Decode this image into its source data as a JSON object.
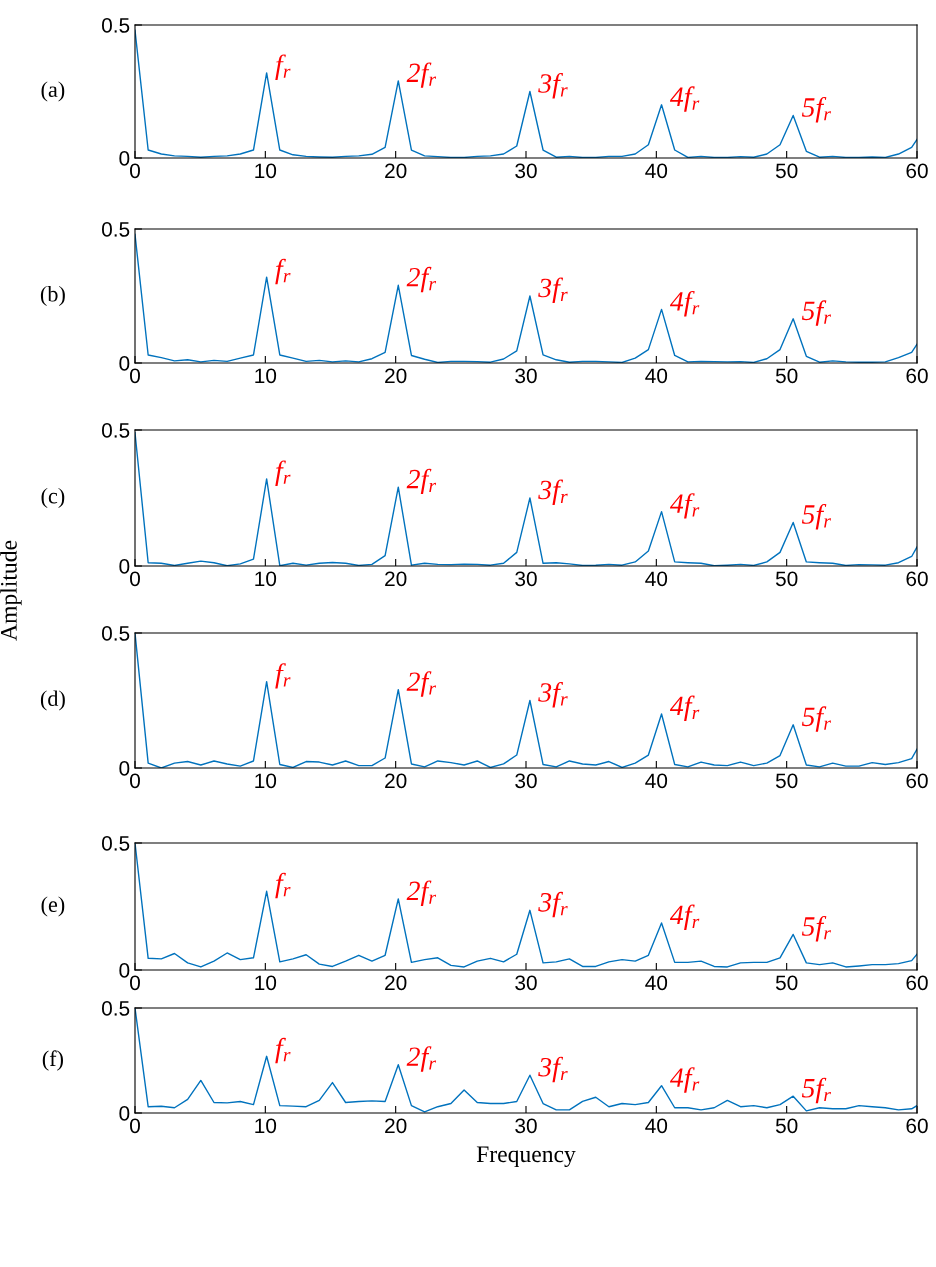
{
  "chart_data": [
    {
      "type": "line",
      "x": [
        0,
        1.01,
        2.02,
        3.03,
        4.04,
        5.05,
        6.06,
        7.07,
        8.08,
        9.09,
        10.1,
        11.11,
        12.12,
        13.13,
        14.14,
        15.15,
        16.16,
        17.17,
        18.18,
        19.19,
        20.2,
        21.21,
        22.22,
        23.23,
        24.24,
        25.25,
        26.26,
        27.27,
        28.28,
        29.29,
        30.3,
        31.31,
        32.32,
        33.33,
        34.34,
        35.35,
        36.36,
        37.37,
        38.38,
        39.39,
        40.4,
        41.41,
        42.42,
        43.43,
        44.44,
        45.45,
        46.46,
        47.47,
        48.48,
        49.49,
        50.5,
        51.51,
        52.52,
        53.53,
        54.54,
        55.55,
        56.56,
        57.57,
        58.58,
        59.59,
        60
      ],
      "series": [
        {
          "color": "#0072bd",
          "values": [
            0.48,
            0.03,
            0.015,
            0.008,
            0.006,
            0.003,
            0.006,
            0.008,
            0.015,
            0.03,
            0.32,
            0.03,
            0.012,
            0.006,
            0.004,
            0.003,
            0.006,
            0.008,
            0.014,
            0.04,
            0.29,
            0.03,
            0.008,
            0.005,
            0.002,
            0.002,
            0.006,
            0.008,
            0.015,
            0.045,
            0.25,
            0.03,
            0.003,
            0.006,
            0.002,
            0.002,
            0.006,
            0.006,
            0.015,
            0.05,
            0.2,
            0.03,
            0.002,
            0.006,
            0.002,
            0.002,
            0.005,
            0.003,
            0.015,
            0.05,
            0.16,
            0.025,
            0.003,
            0.006,
            0.002,
            0.002,
            0.004,
            0.002,
            0.015,
            0.04,
            0.07
          ]
        }
      ],
      "xlim": [
        0,
        60
      ],
      "ylim": [
        0,
        0.5
      ],
      "xticks": [
        0,
        10,
        20,
        30,
        40,
        50,
        60
      ],
      "yticks": [
        0,
        0.5
      ],
      "grid": false,
      "line_style": "solid",
      "marker": "none",
      "annotations": [
        "(a)",
        {
          "text": "f$_{r}$",
          "x": 10.1,
          "y": 0.32
        },
        {
          "text": "2f$_{r}$",
          "x": 20.2,
          "y": 0.29
        },
        {
          "text": "3f$_{r}$",
          "x": 30.3,
          "y": 0.25
        },
        {
          "text": "4f$_{r}$",
          "x": 40.4,
          "y": 0.2
        },
        {
          "text": "5f$_{r}$",
          "x": 50.5,
          "y": 0.16
        }
      ]
    },
    {
      "type": "line",
      "x": [
        0,
        1.01,
        2.02,
        3.03,
        4.04,
        5.05,
        6.06,
        7.07,
        8.08,
        9.09,
        10.1,
        11.11,
        12.12,
        13.13,
        14.14,
        15.15,
        16.16,
        17.17,
        18.18,
        19.19,
        20.2,
        21.21,
        22.22,
        23.23,
        24.24,
        25.25,
        26.26,
        27.27,
        28.28,
        29.29,
        30.3,
        31.31,
        32.32,
        33.33,
        34.34,
        35.35,
        36.36,
        37.37,
        38.38,
        39.39,
        40.4,
        41.41,
        42.42,
        43.43,
        44.44,
        45.45,
        46.46,
        47.47,
        48.48,
        49.49,
        50.5,
        51.51,
        52.52,
        53.53,
        54.54,
        55.55,
        56.56,
        57.57,
        58.58,
        59.59,
        60
      ],
      "series": [
        {
          "color": "#0072bd",
          "values": [
            0.48,
            0.03,
            0.02,
            0.008,
            0.012,
            0.004,
            0.01,
            0.006,
            0.018,
            0.03,
            0.32,
            0.03,
            0.018,
            0.006,
            0.01,
            0.004,
            0.008,
            0.004,
            0.016,
            0.04,
            0.29,
            0.028,
            0.014,
            0.002,
            0.006,
            0.006,
            0.005,
            0.003,
            0.015,
            0.045,
            0.25,
            0.03,
            0.012,
            0.003,
            0.006,
            0.006,
            0.004,
            0.002,
            0.018,
            0.05,
            0.2,
            0.028,
            0.004,
            0.006,
            0.005,
            0.004,
            0.005,
            0.002,
            0.016,
            0.05,
            0.165,
            0.025,
            0.003,
            0.008,
            0.004,
            0.003,
            0.003,
            0.004,
            0.02,
            0.04,
            0.07
          ]
        }
      ],
      "xlim": [
        0,
        60
      ],
      "ylim": [
        0,
        0.5
      ],
      "xticks": [
        0,
        10,
        20,
        30,
        40,
        50,
        60
      ],
      "yticks": [
        0,
        0.5
      ],
      "grid": false,
      "line_style": "solid",
      "marker": "none",
      "annotations": [
        "(b)",
        {
          "text": "f$_{r}$",
          "x": 10.1,
          "y": 0.32
        },
        {
          "text": "2f$_{r}$",
          "x": 20.2,
          "y": 0.29
        },
        {
          "text": "3f$_{r}$",
          "x": 30.3,
          "y": 0.25
        },
        {
          "text": "4f$_{r}$",
          "x": 40.4,
          "y": 0.2
        },
        {
          "text": "5f$_{r}$",
          "x": 50.5,
          "y": 0.165
        }
      ]
    },
    {
      "type": "line",
      "x": [
        0,
        1.01,
        2.02,
        3.03,
        4.04,
        5.05,
        6.06,
        7.07,
        8.08,
        9.09,
        10.1,
        11.11,
        12.12,
        13.13,
        14.14,
        15.15,
        16.16,
        17.17,
        18.18,
        19.19,
        20.2,
        21.21,
        22.22,
        23.23,
        24.24,
        25.25,
        26.26,
        27.27,
        28.28,
        29.29,
        30.3,
        31.31,
        32.32,
        33.33,
        34.34,
        35.35,
        36.36,
        37.37,
        38.38,
        39.39,
        40.4,
        41.41,
        42.42,
        43.43,
        44.44,
        45.45,
        46.46,
        47.47,
        48.48,
        49.49,
        50.5,
        51.51,
        52.52,
        53.53,
        54.54,
        55.55,
        56.56,
        57.57,
        58.58,
        59.59,
        60
      ],
      "series": [
        {
          "color": "#0072bd",
          "values": [
            0.49,
            0.012,
            0.01,
            0.002,
            0.01,
            0.018,
            0.012,
            0.001,
            0.008,
            0.025,
            0.32,
            0.001,
            0.01,
            0.003,
            0.01,
            0.013,
            0.01,
            0.002,
            0.006,
            0.038,
            0.29,
            0.003,
            0.01,
            0.006,
            0.005,
            0.007,
            0.006,
            0.003,
            0.01,
            0.05,
            0.25,
            0.01,
            0.012,
            0.008,
            0.002,
            0.003,
            0.006,
            0.003,
            0.015,
            0.055,
            0.2,
            0.015,
            0.012,
            0.01,
            0.001,
            0.003,
            0.006,
            0.002,
            0.015,
            0.05,
            0.16,
            0.015,
            0.012,
            0.01,
            0.002,
            0.005,
            0.004,
            0.003,
            0.012,
            0.035,
            0.07
          ]
        }
      ],
      "xlim": [
        0,
        60
      ],
      "ylim": [
        0,
        0.5
      ],
      "xticks": [
        0,
        10,
        20,
        30,
        40,
        50,
        60
      ],
      "yticks": [
        0,
        0.5
      ],
      "grid": false,
      "line_style": "solid",
      "marker": "none",
      "ylabel": "Amplitude",
      "annotations": [
        "(c)",
        {
          "text": "f$_{r}$",
          "x": 10.1,
          "y": 0.32
        },
        {
          "text": "2f$_{r}$",
          "x": 20.2,
          "y": 0.29
        },
        {
          "text": "3f$_{r}$",
          "x": 30.3,
          "y": 0.25
        },
        {
          "text": "4f$_{r}$",
          "x": 40.4,
          "y": 0.2
        },
        {
          "text": "5f$_{r}$",
          "x": 50.5,
          "y": 0.16
        }
      ]
    },
    {
      "type": "line",
      "x": [
        0,
        1.01,
        2.02,
        3.03,
        4.04,
        5.05,
        6.06,
        7.07,
        8.08,
        9.09,
        10.1,
        11.11,
        12.12,
        13.13,
        14.14,
        15.15,
        16.16,
        17.17,
        18.18,
        19.19,
        20.2,
        21.21,
        22.22,
        23.23,
        24.24,
        25.25,
        26.26,
        27.27,
        28.28,
        29.29,
        30.3,
        31.31,
        32.32,
        33.33,
        34.34,
        35.35,
        36.36,
        37.37,
        38.38,
        39.39,
        40.4,
        41.41,
        42.42,
        43.43,
        44.44,
        45.45,
        46.46,
        47.47,
        48.48,
        49.49,
        50.5,
        51.51,
        52.52,
        53.53,
        54.54,
        55.55,
        56.56,
        57.57,
        58.58,
        59.59,
        60
      ],
      "series": [
        {
          "color": "#0072bd",
          "values": [
            0.5,
            0.018,
            0.0,
            0.018,
            0.024,
            0.011,
            0.026,
            0.015,
            0.007,
            0.026,
            0.32,
            0.013,
            0.002,
            0.024,
            0.022,
            0.011,
            0.026,
            0.009,
            0.009,
            0.037,
            0.29,
            0.015,
            0.004,
            0.026,
            0.02,
            0.011,
            0.026,
            0.002,
            0.015,
            0.048,
            0.25,
            0.013,
            0.004,
            0.026,
            0.015,
            0.011,
            0.024,
            0.002,
            0.018,
            0.048,
            0.2,
            0.013,
            0.004,
            0.022,
            0.011,
            0.009,
            0.022,
            0.009,
            0.018,
            0.046,
            0.16,
            0.011,
            0.004,
            0.018,
            0.007,
            0.007,
            0.02,
            0.013,
            0.02,
            0.035,
            0.07
          ]
        }
      ],
      "xlim": [
        0,
        60
      ],
      "ylim": [
        0,
        0.5
      ],
      "xticks": [
        0,
        10,
        20,
        30,
        40,
        50,
        60
      ],
      "yticks": [
        0,
        0.5
      ],
      "grid": false,
      "line_style": "solid",
      "marker": "none",
      "annotations": [
        "(d)",
        {
          "text": "f$_{r}$",
          "x": 10.1,
          "y": 0.32
        },
        {
          "text": "2f$_{r}$",
          "x": 20.2,
          "y": 0.29
        },
        {
          "text": "3f$_{r}$",
          "x": 30.3,
          "y": 0.25
        },
        {
          "text": "4f$_{r}$",
          "x": 40.4,
          "y": 0.2
        },
        {
          "text": "5f$_{r}$",
          "x": 50.5,
          "y": 0.16
        }
      ]
    },
    {
      "type": "line",
      "x": [
        0,
        1.01,
        2.02,
        3.03,
        4.04,
        5.05,
        6.06,
        7.07,
        8.08,
        9.09,
        10.1,
        11.11,
        12.12,
        13.13,
        14.14,
        15.15,
        16.16,
        17.17,
        18.18,
        19.19,
        20.2,
        21.21,
        22.22,
        23.23,
        24.24,
        25.25,
        26.26,
        27.27,
        28.28,
        29.29,
        30.3,
        31.31,
        32.32,
        33.33,
        34.34,
        35.35,
        36.36,
        37.37,
        38.38,
        39.39,
        40.4,
        41.41,
        42.42,
        43.43,
        44.44,
        45.45,
        46.46,
        47.47,
        48.48,
        49.49,
        50.5,
        51.51,
        52.52,
        53.53,
        54.54,
        55.55,
        56.56,
        57.57,
        58.58,
        59.59,
        60
      ],
      "series": [
        {
          "color": "#0072bd",
          "values": [
            0.5,
            0.046,
            0.044,
            0.065,
            0.028,
            0.012,
            0.035,
            0.067,
            0.041,
            0.048,
            0.31,
            0.032,
            0.044,
            0.06,
            0.023,
            0.014,
            0.035,
            0.058,
            0.035,
            0.058,
            0.28,
            0.03,
            0.041,
            0.048,
            0.018,
            0.012,
            0.035,
            0.046,
            0.032,
            0.062,
            0.235,
            0.028,
            0.032,
            0.044,
            0.014,
            0.014,
            0.032,
            0.041,
            0.035,
            0.058,
            0.185,
            0.03,
            0.03,
            0.035,
            0.014,
            0.012,
            0.028,
            0.03,
            0.03,
            0.048,
            0.14,
            0.028,
            0.021,
            0.028,
            0.012,
            0.016,
            0.021,
            0.021,
            0.025,
            0.037,
            0.062
          ]
        }
      ],
      "xlim": [
        0,
        60
      ],
      "ylim": [
        0,
        0.5
      ],
      "xticks": [
        0,
        10,
        20,
        30,
        40,
        50,
        60
      ],
      "yticks": [
        0,
        0.5
      ],
      "grid": false,
      "line_style": "solid",
      "marker": "none",
      "annotations": [
        "(e)",
        {
          "text": "f$_{r}$",
          "x": 10.1,
          "y": 0.31
        },
        {
          "text": "2f$_{r}$",
          "x": 20.2,
          "y": 0.28
        },
        {
          "text": "3f$_{r}$",
          "x": 30.3,
          "y": 0.235
        },
        {
          "text": "4f$_{r}$",
          "x": 40.4,
          "y": 0.185
        },
        {
          "text": "5f$_{r}$",
          "x": 50.5,
          "y": 0.14
        }
      ]
    },
    {
      "type": "line",
      "x": [
        0,
        1.01,
        2.02,
        3.03,
        4.04,
        5.05,
        6.06,
        7.07,
        8.08,
        9.09,
        10.1,
        11.11,
        12.12,
        13.13,
        14.14,
        15.15,
        16.16,
        17.17,
        18.18,
        19.19,
        20.2,
        21.21,
        22.22,
        23.23,
        24.24,
        25.25,
        26.26,
        27.27,
        28.28,
        29.29,
        30.3,
        31.31,
        32.32,
        33.33,
        34.34,
        35.35,
        36.36,
        37.37,
        38.38,
        39.39,
        40.4,
        41.41,
        42.42,
        43.43,
        44.44,
        45.45,
        46.46,
        47.47,
        48.48,
        49.49,
        50.5,
        51.51,
        52.52,
        53.53,
        54.54,
        55.55,
        56.56,
        57.57,
        58.58,
        59.59,
        60
      ],
      "series": [
        {
          "color": "#0072bd",
          "values": [
            0.5,
            0.03,
            0.032,
            0.025,
            0.065,
            0.155,
            0.05,
            0.048,
            0.055,
            0.04,
            0.27,
            0.035,
            0.033,
            0.03,
            0.06,
            0.145,
            0.05,
            0.055,
            0.058,
            0.055,
            0.23,
            0.035,
            0.005,
            0.03,
            0.045,
            0.11,
            0.05,
            0.045,
            0.045,
            0.055,
            0.18,
            0.045,
            0.015,
            0.015,
            0.055,
            0.075,
            0.03,
            0.045,
            0.04,
            0.05,
            0.13,
            0.025,
            0.025,
            0.015,
            0.025,
            0.06,
            0.03,
            0.035,
            0.025,
            0.04,
            0.08,
            0.01,
            0.025,
            0.02,
            0.02,
            0.035,
            0.03,
            0.025,
            0.015,
            0.02,
            0.035
          ]
        }
      ],
      "xlim": [
        0,
        60
      ],
      "ylim": [
        0,
        0.5
      ],
      "xticks": [
        0,
        10,
        20,
        30,
        40,
        50,
        60
      ],
      "yticks": [
        0,
        0.5
      ],
      "grid": false,
      "line_style": "solid",
      "marker": "none",
      "xlabel": "Frequency",
      "annotations": [
        "(f)",
        {
          "text": "f$_{r}$",
          "x": 10.1,
          "y": 0.27
        },
        {
          "text": "2f$_{r}$",
          "x": 20.2,
          "y": 0.23
        },
        {
          "text": "3f$_{r}$",
          "x": 30.3,
          "y": 0.18
        },
        {
          "text": "4f$_{r}$",
          "x": 40.4,
          "y": 0.13
        },
        {
          "text": "5f$_{r}$",
          "x": 50.5,
          "y": 0.08
        }
      ]
    }
  ]
}
